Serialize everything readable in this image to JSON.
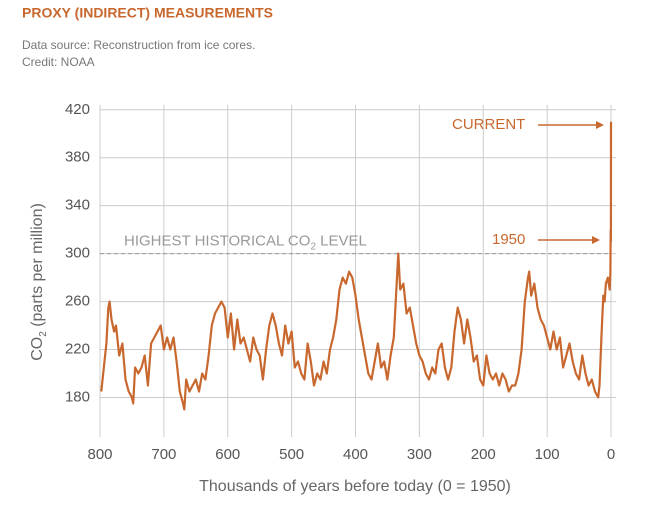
{
  "chart_data": {
    "type": "line",
    "title": "PROXY (INDIRECT) MEASUREMENTS",
    "subtitle": [
      "Data source: Reconstruction from ice cores.",
      "Credit: NOAA"
    ],
    "y_label": {
      "main": "CO",
      "sub": "2",
      "rest": " (parts per million)"
    },
    "x_label": "Thousands of years before today (0 = 1950)",
    "xlim": [
      800,
      0
    ],
    "ylim": [
      147,
      424
    ],
    "xticks": [
      800,
      700,
      600,
      500,
      400,
      300,
      200,
      100,
      0
    ],
    "yticks": [
      180,
      220,
      260,
      300,
      340,
      380,
      420
    ],
    "grid": true,
    "reference_line": {
      "value": 300,
      "label": "HIGHEST HISTORICAL CO",
      "label_sub": "2",
      "label_end": " LEVEL"
    },
    "annotations": [
      "CURRENT",
      "1950"
    ],
    "series": [
      {
        "name": "CO2",
        "color": "#c8682e",
        "x": [
          798,
          795,
          790,
          787,
          785,
          782,
          778,
          775,
          770,
          765,
          760,
          755,
          750,
          748,
          745,
          740,
          735,
          730,
          725,
          720,
          715,
          710,
          705,
          700,
          695,
          690,
          685,
          680,
          675,
          670,
          668,
          665,
          660,
          655,
          650,
          645,
          640,
          635,
          630,
          625,
          620,
          615,
          610,
          605,
          600,
          595,
          590,
          585,
          580,
          575,
          570,
          565,
          560,
          555,
          550,
          545,
          540,
          535,
          530,
          525,
          520,
          515,
          510,
          505,
          500,
          495,
          490,
          485,
          480,
          475,
          470,
          465,
          460,
          455,
          450,
          445,
          440,
          435,
          430,
          425,
          420,
          415,
          410,
          405,
          400,
          395,
          390,
          385,
          380,
          375,
          370,
          365,
          360,
          355,
          350,
          345,
          340,
          335,
          333,
          330,
          325,
          320,
          315,
          310,
          305,
          300,
          295,
          290,
          285,
          280,
          275,
          270,
          265,
          260,
          255,
          250,
          245,
          240,
          235,
          230,
          225,
          220,
          215,
          210,
          205,
          200,
          195,
          190,
          185,
          180,
          175,
          170,
          165,
          160,
          155,
          150,
          145,
          140,
          135,
          130,
          128,
          125,
          120,
          115,
          110,
          105,
          100,
          95,
          90,
          85,
          80,
          75,
          70,
          65,
          60,
          55,
          50,
          45,
          40,
          35,
          30,
          25,
          20,
          18,
          15,
          12,
          10,
          8,
          5,
          2,
          1,
          0.5,
          0.2,
          0
        ],
        "values": [
          185,
          200,
          225,
          255,
          260,
          245,
          235,
          240,
          215,
          225,
          195,
          185,
          180,
          175,
          205,
          200,
          205,
          215,
          190,
          225,
          230,
          235,
          240,
          220,
          230,
          220,
          230,
          210,
          185,
          175,
          170,
          195,
          185,
          190,
          195,
          185,
          200,
          195,
          215,
          240,
          250,
          255,
          260,
          255,
          230,
          250,
          220,
          245,
          225,
          230,
          220,
          210,
          230,
          220,
          215,
          195,
          220,
          240,
          250,
          240,
          225,
          215,
          240,
          225,
          235,
          205,
          210,
          200,
          195,
          225,
          210,
          190,
          200,
          195,
          210,
          200,
          220,
          230,
          245,
          270,
          280,
          275,
          285,
          280,
          265,
          245,
          230,
          215,
          200,
          195,
          210,
          225,
          205,
          210,
          195,
          215,
          230,
          280,
          300,
          270,
          275,
          250,
          255,
          240,
          225,
          215,
          210,
          200,
          195,
          205,
          200,
          220,
          225,
          205,
          195,
          205,
          235,
          255,
          245,
          225,
          245,
          230,
          210,
          215,
          195,
          190,
          215,
          200,
          195,
          200,
          190,
          200,
          195,
          185,
          190,
          190,
          200,
          220,
          260,
          280,
          285,
          265,
          275,
          255,
          245,
          240,
          230,
          220,
          235,
          220,
          230,
          205,
          215,
          225,
          210,
          200,
          195,
          215,
          200,
          190,
          195,
          185,
          180,
          190,
          230,
          265,
          260,
          275,
          280,
          270,
          285,
          320,
          310,
          410
        ]
      }
    ]
  }
}
